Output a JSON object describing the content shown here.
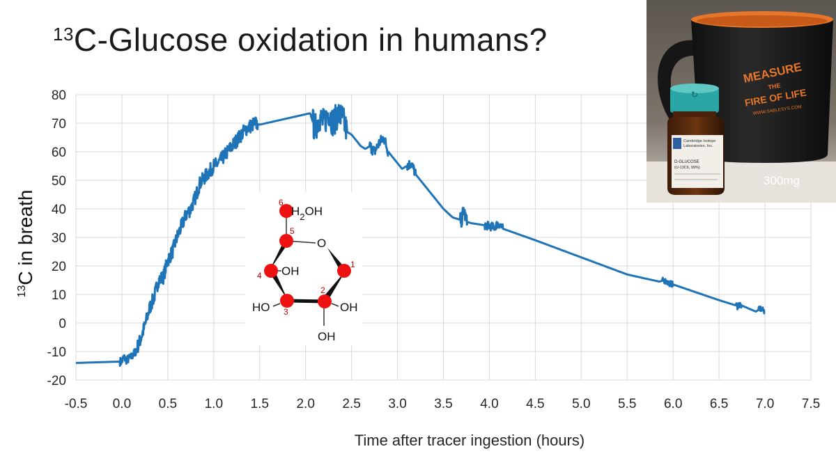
{
  "slide": {
    "title_superscript": "13",
    "title_text": "C-Glucose oxidation in humans?"
  },
  "chart_data": {
    "type": "line",
    "title": "",
    "xlabel": "Time after tracer ingestion (hours)",
    "ylabel_superscript": "13",
    "ylabel_text": "C in breath",
    "xlim": [
      -0.5,
      7.5
    ],
    "ylim": [
      -20,
      80
    ],
    "x_ticks": [
      "-0.5",
      "0.0",
      "0.5",
      "1.0",
      "1.5",
      "2.0",
      "2.5",
      "3.0",
      "3.5",
      "4.0",
      "4.5",
      "5.0",
      "5.5",
      "6.0",
      "6.5",
      "7.0",
      "7.5"
    ],
    "y_ticks": [
      "80",
      "70",
      "60",
      "50",
      "40",
      "30",
      "20",
      "10",
      "0",
      "-10",
      "-20"
    ],
    "grid": true,
    "legend": "none",
    "series_color": "#1f73b7",
    "series": [
      {
        "x": [
          -0.5,
          0.0,
          0.02,
          0.05,
          0.1,
          0.15,
          0.2,
          0.25,
          0.3,
          0.35,
          0.4,
          0.45,
          0.5,
          0.55,
          0.6,
          0.65,
          0.7,
          0.75,
          0.8,
          0.85,
          0.9,
          0.95,
          1.0,
          1.05,
          1.1,
          1.15,
          1.2,
          1.25,
          1.3,
          1.35,
          1.4,
          1.45,
          1.5,
          2.05,
          2.1,
          2.15,
          2.2,
          2.25,
          2.3,
          2.35,
          2.4,
          2.45,
          2.5,
          2.55,
          2.6,
          2.65,
          2.7,
          2.75,
          2.8,
          2.85,
          2.9,
          2.95,
          3.0,
          3.05,
          3.1,
          3.15,
          3.2,
          3.3,
          3.4,
          3.5,
          3.6,
          3.7,
          3.72,
          3.75,
          3.8,
          3.9,
          4.0,
          4.05,
          4.1,
          4.15,
          4.5,
          5.0,
          5.5,
          5.85,
          5.9,
          5.95,
          6.0,
          6.5,
          6.7,
          6.72,
          6.9,
          6.95,
          7.0
        ],
        "y": [
          -14,
          -13.5,
          -12,
          -13,
          -12,
          -10,
          -6,
          -1,
          5,
          9,
          15,
          16,
          22,
          25,
          30,
          34,
          38,
          40,
          44,
          49,
          51,
          53,
          55,
          56,
          58,
          60,
          62,
          64,
          66,
          68,
          69,
          70,
          69.5,
          73.5,
          68,
          72,
          70,
          74,
          70,
          73,
          72,
          67,
          66,
          64,
          62,
          61,
          62,
          60,
          63,
          65,
          60,
          58,
          56,
          54,
          55,
          56,
          52,
          48,
          44,
          40,
          37,
          36,
          40,
          35.5,
          35,
          34.5,
          34,
          33.5,
          35,
          33,
          29,
          23,
          17,
          14.5,
          15,
          14,
          13.5,
          8,
          6,
          6.5,
          4,
          5,
          4
        ]
      }
    ],
    "noisy_segments": [
      [
        -0.02,
        0.15,
        1.5
      ],
      [
        0.15,
        1.48,
        2.5
      ],
      [
        2.08,
        2.45,
        5.0
      ],
      [
        2.7,
        2.9,
        2.0
      ],
      [
        3.1,
        3.2,
        1.8
      ],
      [
        3.68,
        3.76,
        2.5
      ],
      [
        3.95,
        4.15,
        1.5
      ],
      [
        5.88,
        6.0,
        1.0
      ],
      [
        6.68,
        6.74,
        1.2
      ],
      [
        6.93,
        7.0,
        1.0
      ]
    ]
  },
  "molecule": {
    "numbers": [
      "1",
      "2",
      "3",
      "4",
      "5",
      "6"
    ],
    "labels": {
      "h2oh_h": "H",
      "h2oh_sub": "2",
      "h2oh_oh": "OH",
      "ring_o": "O",
      "oh_4": "OH",
      "ho_3": "HO",
      "oh_2": "OH",
      "oh_bottom": "OH"
    },
    "atom_color": "#ee1111"
  },
  "photo": {
    "mug_line1": "MEASURE",
    "mug_line2": "THE",
    "mug_line3": "FIRE OF LIFE",
    "mug_line4": "WWW.SABLESYS.COM",
    "jar_label_line1": "Cambridge Isotope",
    "jar_label_line2": "Laboratories, Inc.",
    "jar_label_line3": "D-GLUCOSE",
    "jar_label_line4": "(U-13C6, 99%)",
    "caption": "300mg",
    "mug_color": "#1b1b1b",
    "accent_color": "#e8762a",
    "cap_color": "#2aa6a6"
  }
}
